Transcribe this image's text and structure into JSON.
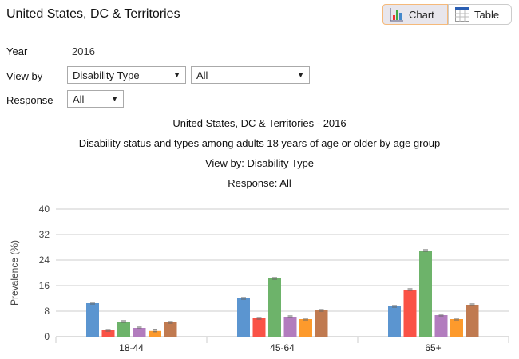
{
  "header": {
    "title": "United States, DC & Territories",
    "chart_label": "Chart",
    "table_label": "Table"
  },
  "filters": {
    "year_label": "Year",
    "year_value": "2016",
    "viewby_label": "View by",
    "viewby_value": "Disability Type",
    "viewby_sub_value": "All",
    "response_label": "Response",
    "response_value": "All"
  },
  "chart_data": {
    "type": "bar",
    "title_lines": [
      "United States, DC & Territories - 2016",
      "Disability status and types among adults 18 years of age or older by age group",
      "View by: Disability Type",
      "Response: All"
    ],
    "ylabel": "Prevalence (%)",
    "ylim": [
      0,
      40
    ],
    "yticks": [
      "0",
      "8",
      "16",
      "24",
      "32",
      "40"
    ],
    "grid": true,
    "categories": [
      "18-44",
      "45-64",
      "65+"
    ],
    "series": [
      {
        "color": "#5b95d0",
        "values": [
          10.5,
          12.0,
          9.5
        ]
      },
      {
        "color": "#fa5246",
        "values": [
          2.0,
          5.75,
          14.75
        ]
      },
      {
        "color": "#6db36a",
        "values": [
          4.75,
          18.25,
          27.0
        ]
      },
      {
        "color": "#b27cbe",
        "values": [
          2.75,
          6.25,
          6.75
        ]
      },
      {
        "color": "#fd9a2c",
        "values": [
          1.8,
          5.5,
          5.5
        ]
      },
      {
        "color": "#c07a50",
        "values": [
          4.5,
          8.25,
          10.0
        ]
      }
    ]
  }
}
